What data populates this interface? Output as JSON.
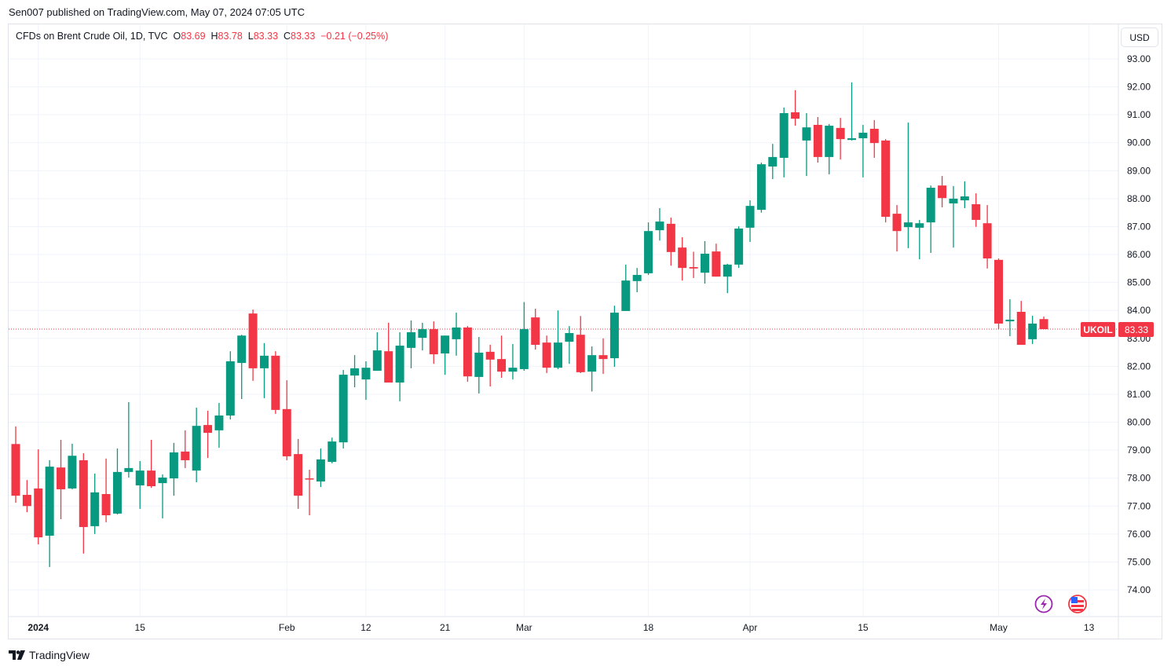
{
  "header": {
    "published": "Sen007 published on TradingView.com, May 07, 2024 07:05 UTC"
  },
  "legend": {
    "symbol": "CFDs on Brent Crude Oil, 1D, TVC",
    "o_label": "O",
    "o": "83.69",
    "h_label": "H",
    "h": "83.78",
    "l_label": "L",
    "l": "83.33",
    "c_label": "C",
    "c": "83.33",
    "change": "−0.21 (−0.25%)"
  },
  "currency_button": "USD",
  "last_price": {
    "ticker": "UKOIL",
    "price": "83.33"
  },
  "footer": {
    "brand": "TradingView"
  },
  "icons": [
    "lightning-icon",
    "us-flag-icon",
    "tradingview-logo-icon"
  ],
  "colors": {
    "up": "#089981",
    "down": "#f23645",
    "grid": "#f0f3fa",
    "axis_text": "#131722"
  },
  "chart_data": {
    "type": "candlestick",
    "title": "CFDs on Brent Crude Oil, 1D, TVC",
    "ylabel": "USD",
    "ylim": [
      73.4,
      93.5
    ],
    "grid": true,
    "y_ticks": [
      "93.00",
      "92.00",
      "91.00",
      "90.00",
      "89.00",
      "88.00",
      "87.00",
      "86.00",
      "85.00",
      "84.00",
      "83.00",
      "82.00",
      "81.00",
      "80.00",
      "79.00",
      "78.00",
      "77.00",
      "76.00",
      "75.00",
      "74.00"
    ],
    "x_ticks": [
      {
        "label": "2024",
        "index": 2,
        "bold": true
      },
      {
        "label": "15",
        "index": 11
      },
      {
        "label": "Feb",
        "index": 24
      },
      {
        "label": "12",
        "index": 31
      },
      {
        "label": "21",
        "index": 38
      },
      {
        "label": "Mar",
        "index": 45
      },
      {
        "label": "18",
        "index": 56
      },
      {
        "label": "Apr",
        "index": 65
      },
      {
        "label": "15",
        "index": 75
      },
      {
        "label": "May",
        "index": 87
      },
      {
        "label": "13",
        "index": 95
      }
    ],
    "last_close": 83.33,
    "ohlc_columns": [
      "open",
      "high",
      "low",
      "close"
    ],
    "ohlc": [
      [
        79.22,
        79.85,
        77.12,
        77.37
      ],
      [
        77.4,
        77.93,
        76.78,
        77.0
      ],
      [
        77.63,
        79.03,
        75.63,
        75.88
      ],
      [
        75.94,
        78.64,
        74.82,
        78.41
      ],
      [
        78.38,
        79.37,
        76.53,
        77.6
      ],
      [
        77.63,
        79.23,
        77.6,
        78.8
      ],
      [
        78.64,
        78.89,
        75.3,
        76.25
      ],
      [
        76.28,
        78.16,
        76.0,
        77.49
      ],
      [
        77.43,
        78.7,
        76.42,
        76.67
      ],
      [
        76.73,
        79.06,
        76.7,
        78.22
      ],
      [
        78.22,
        80.72,
        78.02,
        78.36
      ],
      [
        77.74,
        78.61,
        76.9,
        78.27
      ],
      [
        78.27,
        79.37,
        77.65,
        77.71
      ],
      [
        77.82,
        78.13,
        76.56,
        78.02
      ],
      [
        77.99,
        79.26,
        77.37,
        78.92
      ],
      [
        78.95,
        79.71,
        78.36,
        78.64
      ],
      [
        78.27,
        80.52,
        77.85,
        79.87
      ],
      [
        79.9,
        80.41,
        78.72,
        79.62
      ],
      [
        79.71,
        80.69,
        79.09,
        80.24
      ],
      [
        80.24,
        82.54,
        80.1,
        82.18
      ],
      [
        82.12,
        83.13,
        80.83,
        83.1
      ],
      [
        83.89,
        84.03,
        81.48,
        81.93
      ],
      [
        81.93,
        82.83,
        80.86,
        82.38
      ],
      [
        82.38,
        82.54,
        80.3,
        80.44
      ],
      [
        80.47,
        81.5,
        78.64,
        78.78
      ],
      [
        78.86,
        79.4,
        76.9,
        77.37
      ],
      [
        77.99,
        78.3,
        76.67,
        77.96
      ],
      [
        77.88,
        79.06,
        77.68,
        78.67
      ],
      [
        78.58,
        79.45,
        78.53,
        79.31
      ],
      [
        79.28,
        81.87,
        79.06,
        81.7
      ],
      [
        81.67,
        82.4,
        81.25,
        81.93
      ],
      [
        81.53,
        82.18,
        80.8,
        81.95
      ],
      [
        81.84,
        83.22,
        81.84,
        82.57
      ],
      [
        82.54,
        83.56,
        81.42,
        81.42
      ],
      [
        81.42,
        83.22,
        80.75,
        82.74
      ],
      [
        82.66,
        83.64,
        81.93,
        83.22
      ],
      [
        83.02,
        83.56,
        82.57,
        83.33
      ],
      [
        83.33,
        83.61,
        82.09,
        82.43
      ],
      [
        82.46,
        83.1,
        81.7,
        83.1
      ],
      [
        82.97,
        83.92,
        82.38,
        83.39
      ],
      [
        83.39,
        83.44,
        81.45,
        81.64
      ],
      [
        81.62,
        83.05,
        81.03,
        82.49
      ],
      [
        82.52,
        82.77,
        81.28,
        82.24
      ],
      [
        82.26,
        83.1,
        81.59,
        81.81
      ],
      [
        81.81,
        82.8,
        81.53,
        81.95
      ],
      [
        81.9,
        84.3,
        81.84,
        83.33
      ],
      [
        83.75,
        84.06,
        82.6,
        82.77
      ],
      [
        82.85,
        83.1,
        81.76,
        81.95
      ],
      [
        81.95,
        84.0,
        81.9,
        82.85
      ],
      [
        82.88,
        83.44,
        82.09,
        83.19
      ],
      [
        83.13,
        83.8,
        81.76,
        81.79
      ],
      [
        81.81,
        82.71,
        81.1,
        82.4
      ],
      [
        82.4,
        83.0,
        81.73,
        82.26
      ],
      [
        82.29,
        84.17,
        81.98,
        83.92
      ],
      [
        83.98,
        85.64,
        83.98,
        85.07
      ],
      [
        85.05,
        85.52,
        84.65,
        85.27
      ],
      [
        85.33,
        87.15,
        85.27,
        86.84
      ],
      [
        86.87,
        87.66,
        86.5,
        87.18
      ],
      [
        87.1,
        87.32,
        85.6,
        86.09
      ],
      [
        86.25,
        86.62,
        85.07,
        85.52
      ],
      [
        85.55,
        86.1,
        85.16,
        85.5
      ],
      [
        85.35,
        86.48,
        84.96,
        86.03
      ],
      [
        86.11,
        86.39,
        85.21,
        85.21
      ],
      [
        85.21,
        85.67,
        84.62,
        85.64
      ],
      [
        85.64,
        87.01,
        85.52,
        86.93
      ],
      [
        86.96,
        87.94,
        86.45,
        87.74
      ],
      [
        87.6,
        89.29,
        87.5,
        89.23
      ],
      [
        89.15,
        89.96,
        88.7,
        89.49
      ],
      [
        89.46,
        91.26,
        88.76,
        91.06
      ],
      [
        91.09,
        91.88,
        90.61,
        90.86
      ],
      [
        90.08,
        91.06,
        88.81,
        90.55
      ],
      [
        90.64,
        90.92,
        89.29,
        89.49
      ],
      [
        89.49,
        90.67,
        88.87,
        90.61
      ],
      [
        90.53,
        90.89,
        89.4,
        90.13
      ],
      [
        90.1,
        92.16,
        90.08,
        90.16
      ],
      [
        90.16,
        90.64,
        88.76,
        90.36
      ],
      [
        90.5,
        90.81,
        89.46,
        89.99
      ],
      [
        90.08,
        90.13,
        87.15,
        87.35
      ],
      [
        87.46,
        87.77,
        86.11,
        86.84
      ],
      [
        86.98,
        90.72,
        86.23,
        87.15
      ],
      [
        86.96,
        87.24,
        85.83,
        87.12
      ],
      [
        87.15,
        88.47,
        86.06,
        88.39
      ],
      [
        88.47,
        88.81,
        87.69,
        88.02
      ],
      [
        87.83,
        88.45,
        86.25,
        88.0
      ],
      [
        87.94,
        88.62,
        87.66,
        88.08
      ],
      [
        87.8,
        88.19,
        86.99,
        87.24
      ],
      [
        87.12,
        87.77,
        85.5,
        85.86
      ],
      [
        85.81,
        85.86,
        83.33,
        83.53
      ],
      [
        83.61,
        84.4,
        83.08,
        83.67
      ],
      [
        83.95,
        84.34,
        82.77,
        82.77
      ],
      [
        82.97,
        83.81,
        82.8,
        83.53
      ],
      [
        83.69,
        83.78,
        83.33,
        83.33
      ]
    ]
  }
}
